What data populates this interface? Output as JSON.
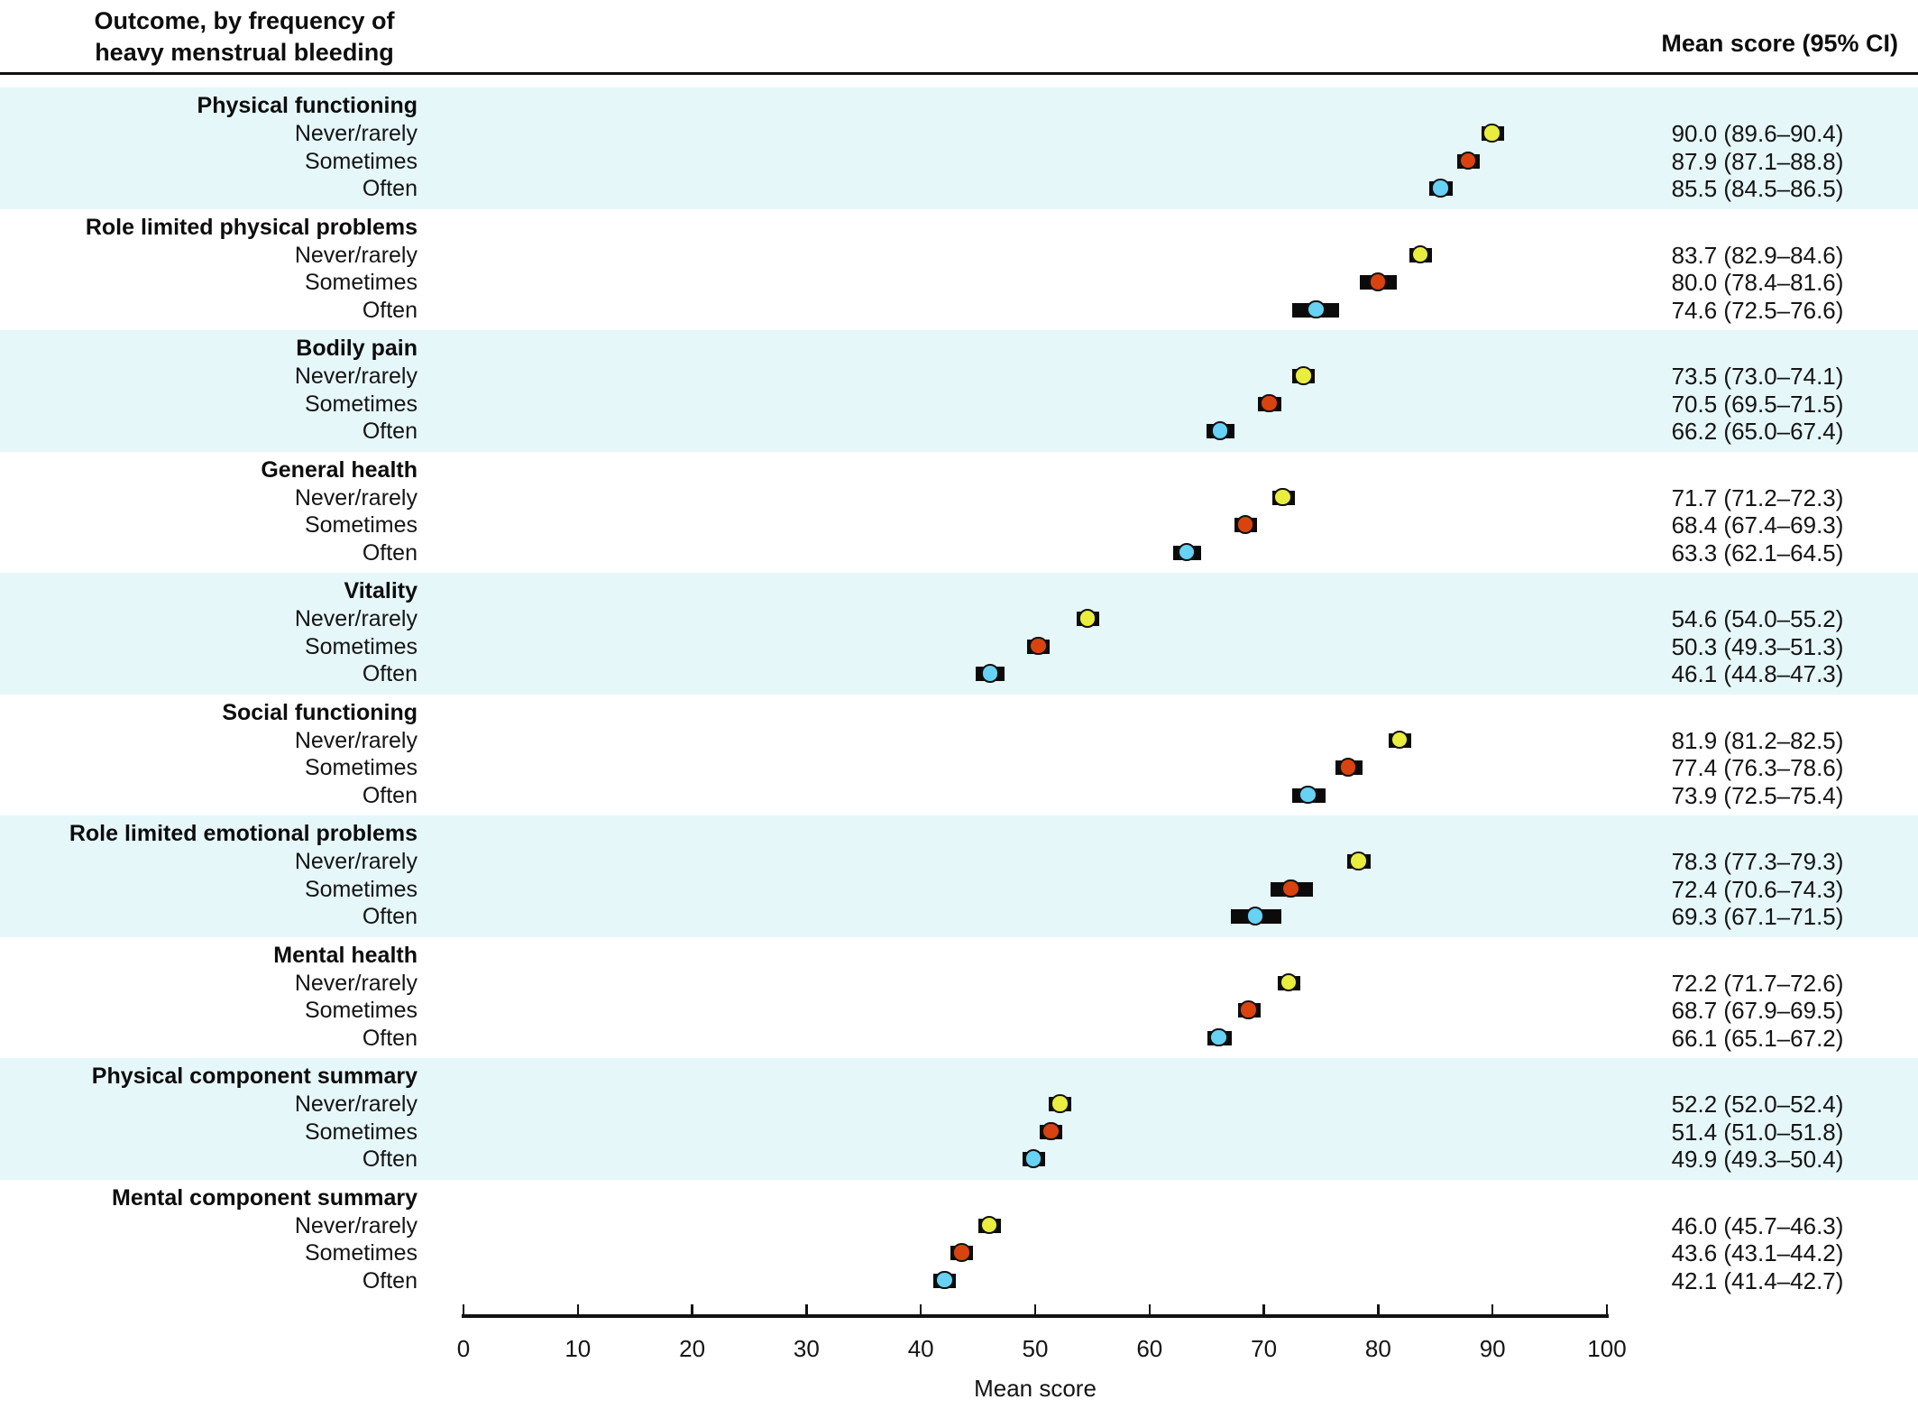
{
  "header": {
    "outcome_title_line1": "Outcome, by frequency of",
    "outcome_title_line2": "heavy menstrual bleeding",
    "value_column_title": "Mean score (95% CI)"
  },
  "colors": {
    "band_highlight": "#e6f7fa",
    "never_rarely_marker": "#e9ed3d",
    "sometimes_marker": "#d8430f",
    "often_marker": "#67d2f4",
    "ci_bar": "#0b0b0b"
  },
  "chart_data": {
    "type": "scatter",
    "subtype": "forest-dot-plot",
    "xlabel": "Mean score",
    "xlim": [
      0,
      100
    ],
    "xticks": [
      0,
      10,
      20,
      30,
      40,
      50,
      60,
      70,
      80,
      90,
      100
    ],
    "grid": false,
    "level_colors": {
      "Never/rarely": "#e9ed3d",
      "Sometimes": "#d8430f",
      "Often": "#67d2f4"
    },
    "groups": [
      {
        "name": "Physical functioning",
        "highlighted": true,
        "rows": [
          {
            "level": "Never/rarely",
            "mean": 90.0,
            "ci_low": 89.6,
            "ci_high": 90.4,
            "label": "90.0 (89.6–90.4)"
          },
          {
            "level": "Sometimes",
            "mean": 87.9,
            "ci_low": 87.1,
            "ci_high": 88.8,
            "label": "87.9 (87.1–88.8)"
          },
          {
            "level": "Often",
            "mean": 85.5,
            "ci_low": 84.5,
            "ci_high": 86.5,
            "label": "85.5 (84.5–86.5)"
          }
        ]
      },
      {
        "name": "Role limited physical problems",
        "highlighted": false,
        "rows": [
          {
            "level": "Never/rarely",
            "mean": 83.7,
            "ci_low": 82.9,
            "ci_high": 84.6,
            "label": "83.7 (82.9–84.6)"
          },
          {
            "level": "Sometimes",
            "mean": 80.0,
            "ci_low": 78.4,
            "ci_high": 81.6,
            "label": "80.0 (78.4–81.6)"
          },
          {
            "level": "Often",
            "mean": 74.6,
            "ci_low": 72.5,
            "ci_high": 76.6,
            "label": "74.6 (72.5–76.6)"
          }
        ]
      },
      {
        "name": "Bodily pain",
        "highlighted": true,
        "rows": [
          {
            "level": "Never/rarely",
            "mean": 73.5,
            "ci_low": 73.0,
            "ci_high": 74.1,
            "label": "73.5 (73.0–74.1)"
          },
          {
            "level": "Sometimes",
            "mean": 70.5,
            "ci_low": 69.5,
            "ci_high": 71.5,
            "label": "70.5 (69.5–71.5)"
          },
          {
            "level": "Often",
            "mean": 66.2,
            "ci_low": 65.0,
            "ci_high": 67.4,
            "label": "66.2 (65.0–67.4)"
          }
        ]
      },
      {
        "name": "General health",
        "highlighted": false,
        "rows": [
          {
            "level": "Never/rarely",
            "mean": 71.7,
            "ci_low": 71.2,
            "ci_high": 72.3,
            "label": "71.7 (71.2–72.3)"
          },
          {
            "level": "Sometimes",
            "mean": 68.4,
            "ci_low": 67.4,
            "ci_high": 69.3,
            "label": "68.4 (67.4–69.3)"
          },
          {
            "level": "Often",
            "mean": 63.3,
            "ci_low": 62.1,
            "ci_high": 64.5,
            "label": "63.3 (62.1–64.5)"
          }
        ]
      },
      {
        "name": "Vitality",
        "highlighted": true,
        "rows": [
          {
            "level": "Never/rarely",
            "mean": 54.6,
            "ci_low": 54.0,
            "ci_high": 55.2,
            "label": "54.6 (54.0–55.2)"
          },
          {
            "level": "Sometimes",
            "mean": 50.3,
            "ci_low": 49.3,
            "ci_high": 51.3,
            "label": "50.3 (49.3–51.3)"
          },
          {
            "level": "Often",
            "mean": 46.1,
            "ci_low": 44.8,
            "ci_high": 47.3,
            "label": "46.1 (44.8–47.3)"
          }
        ]
      },
      {
        "name": "Social functioning",
        "highlighted": false,
        "rows": [
          {
            "level": "Never/rarely",
            "mean": 81.9,
            "ci_low": 81.2,
            "ci_high": 82.5,
            "label": "81.9 (81.2–82.5)"
          },
          {
            "level": "Sometimes",
            "mean": 77.4,
            "ci_low": 76.3,
            "ci_high": 78.6,
            "label": "77.4 (76.3–78.6)"
          },
          {
            "level": "Often",
            "mean": 73.9,
            "ci_low": 72.5,
            "ci_high": 75.4,
            "label": "73.9 (72.5–75.4)"
          }
        ]
      },
      {
        "name": "Role limited emotional problems",
        "highlighted": true,
        "rows": [
          {
            "level": "Never/rarely",
            "mean": 78.3,
            "ci_low": 77.3,
            "ci_high": 79.3,
            "label": "78.3 (77.3–79.3)"
          },
          {
            "level": "Sometimes",
            "mean": 72.4,
            "ci_low": 70.6,
            "ci_high": 74.3,
            "label": "72.4 (70.6–74.3)"
          },
          {
            "level": "Often",
            "mean": 69.3,
            "ci_low": 67.1,
            "ci_high": 71.5,
            "label": "69.3 (67.1–71.5)"
          }
        ]
      },
      {
        "name": "Mental health",
        "highlighted": false,
        "rows": [
          {
            "level": "Never/rarely",
            "mean": 72.2,
            "ci_low": 71.7,
            "ci_high": 72.6,
            "label": "72.2 (71.7–72.6)"
          },
          {
            "level": "Sometimes",
            "mean": 68.7,
            "ci_low": 67.9,
            "ci_high": 69.5,
            "label": "68.7 (67.9–69.5)"
          },
          {
            "level": "Often",
            "mean": 66.1,
            "ci_low": 65.1,
            "ci_high": 67.2,
            "label": "66.1 (65.1–67.2)"
          }
        ]
      },
      {
        "name": "Physical component summary",
        "highlighted": true,
        "rows": [
          {
            "level": "Never/rarely",
            "mean": 52.2,
            "ci_low": 52.0,
            "ci_high": 52.4,
            "label": "52.2 (52.0–52.4)"
          },
          {
            "level": "Sometimes",
            "mean": 51.4,
            "ci_low": 51.0,
            "ci_high": 51.8,
            "label": "51.4 (51.0–51.8)"
          },
          {
            "level": "Often",
            "mean": 49.9,
            "ci_low": 49.3,
            "ci_high": 50.4,
            "label": "49.9 (49.3–50.4)"
          }
        ]
      },
      {
        "name": "Mental component summary",
        "highlighted": false,
        "rows": [
          {
            "level": "Never/rarely",
            "mean": 46.0,
            "ci_low": 45.7,
            "ci_high": 46.3,
            "label": "46.0 (45.7–46.3)"
          },
          {
            "level": "Sometimes",
            "mean": 43.6,
            "ci_low": 43.1,
            "ci_high": 44.2,
            "label": "43.6 (43.1–44.2)"
          },
          {
            "level": "Often",
            "mean": 42.1,
            "ci_low": 41.4,
            "ci_high": 42.7,
            "label": "42.1 (41.4–42.7)"
          }
        ]
      }
    ]
  }
}
